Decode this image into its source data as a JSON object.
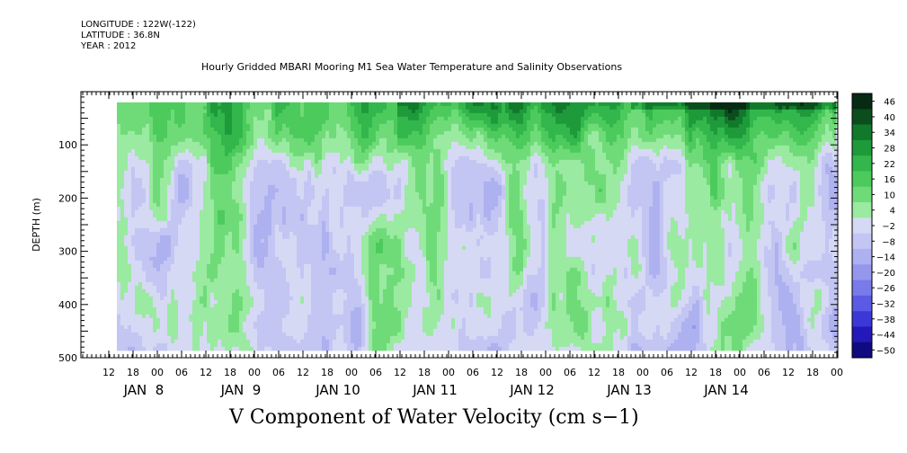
{
  "header": {
    "longitude": "LONGITUDE : 122W(-122)",
    "latitude": "LATITUDE : 36.8N",
    "year": "YEAR : 2012"
  },
  "chart_data": {
    "type": "heatmap",
    "title": "Hourly Gridded MBARI Mooring M1 Sea Water Temperature and Salinity Observations",
    "xlabel": "V Component of Water Velocity (cm s−1)",
    "ylabel": "DEPTH (m)",
    "ylim": [
      500,
      0
    ],
    "y_ticks": [
      100,
      200,
      300,
      400,
      500
    ],
    "x_hour_ticks": [
      "12",
      "18",
      "00",
      "06",
      "12",
      "18",
      "00",
      "06",
      "12",
      "18",
      "00",
      "06",
      "12",
      "18",
      "00",
      "06",
      "12",
      "18",
      "00",
      "06",
      "12",
      "18",
      "00",
      "06",
      "12",
      "18",
      "00",
      "06",
      "12",
      "18",
      "00"
    ],
    "x_day_labels": [
      "JAN  8",
      "JAN  9",
      "JAN 10",
      "JAN 11",
      "JAN 12",
      "JAN 13",
      "JAN 14"
    ],
    "data_depth_range": [
      20,
      485
    ],
    "colorbar": {
      "levels": [
        "46",
        "40",
        "34",
        "28",
        "22",
        "16",
        "10",
        "4",
        "-2",
        "-8",
        "-14",
        "-20",
        "-26",
        "-32",
        "-38",
        "-44",
        "-50"
      ],
      "min": -50,
      "max": 50
    },
    "grid": false
  }
}
